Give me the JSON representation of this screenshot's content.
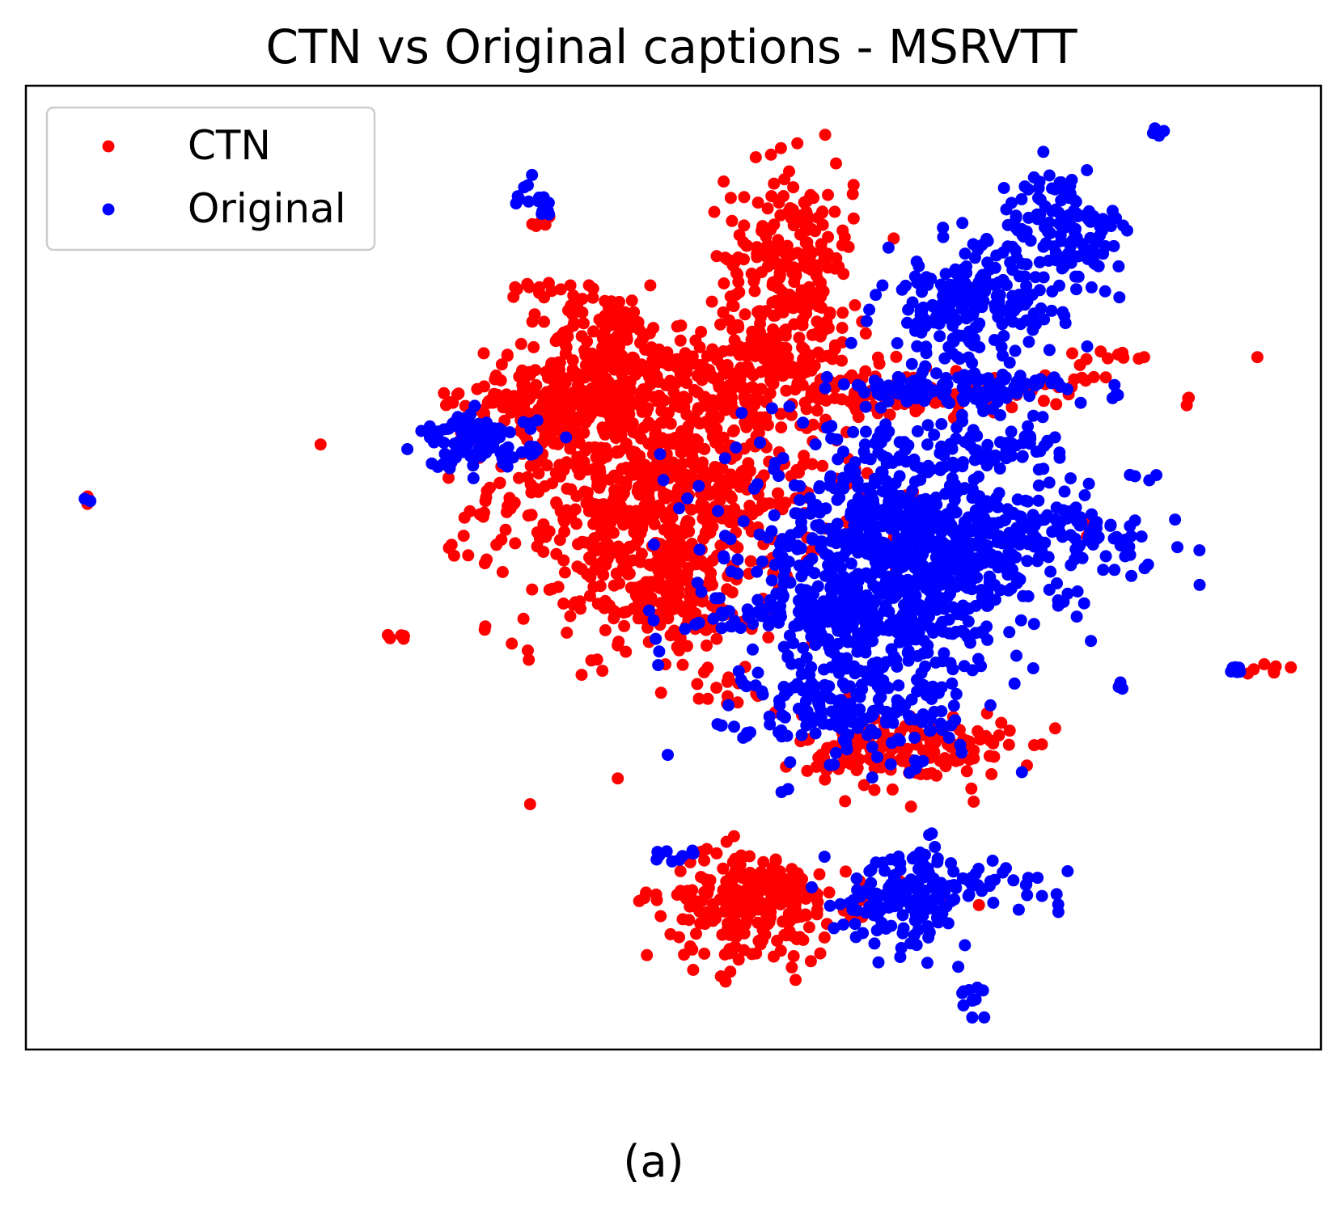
{
  "figure": {
    "caption": "(a)"
  },
  "chart_data": {
    "type": "scatter",
    "title": "CTN vs Original captions - MSRVTT",
    "xlabel": "",
    "ylabel": "",
    "xticks": false,
    "yticks": false,
    "grid": false,
    "legend_position": "top-left",
    "xlim": [
      0,
      100
    ],
    "ylim": [
      0,
      100
    ],
    "series": [
      {
        "name": "CTN",
        "color": "#ff0000",
        "clusters": [
          {
            "cx": 49,
            "cy": 59,
            "sx": 6.5,
            "sy": 8,
            "n": 900
          },
          {
            "cx": 45,
            "cy": 71,
            "sx": 2.5,
            "sy": 4,
            "n": 220
          },
          {
            "cx": 59,
            "cy": 82,
            "sx": 2.5,
            "sy": 5,
            "n": 220
          },
          {
            "cx": 40,
            "cy": 67,
            "sx": 3,
            "sy": 1.6,
            "n": 140
          },
          {
            "cx": 58,
            "cy": 71,
            "sx": 4,
            "sy": 2.5,
            "n": 140
          },
          {
            "cx": 69,
            "cy": 68,
            "sx": 4.5,
            "sy": 1,
            "n": 90
          },
          {
            "cx": 49,
            "cy": 47,
            "sx": 2.5,
            "sy": 3,
            "n": 120
          },
          {
            "cx": 68,
            "cy": 31,
            "sx": 4,
            "sy": 2,
            "n": 170
          },
          {
            "cx": 56,
            "cy": 15,
            "sx": 3,
            "sy": 3,
            "n": 200
          },
          {
            "cx": 58,
            "cy": 16,
            "sx": 6,
            "sy": 1.2,
            "n": 70
          },
          {
            "cx": 39.5,
            "cy": 79,
            "sx": 1.2,
            "sy": 0.6,
            "n": 12
          },
          {
            "cx": 40,
            "cy": 86,
            "sx": 0.5,
            "sy": 0.5,
            "n": 5
          },
          {
            "cx": 28.8,
            "cy": 42.8,
            "sx": 0.5,
            "sy": 0.25,
            "n": 5
          },
          {
            "cx": 4.5,
            "cy": 56.8,
            "sx": 0.2,
            "sy": 0.2,
            "n": 2
          },
          {
            "cx": 96,
            "cy": 39.5,
            "sx": 0.8,
            "sy": 0.3,
            "n": 7
          },
          {
            "cx": 95,
            "cy": 72.3,
            "sx": 0.2,
            "sy": 0.2,
            "n": 1
          },
          {
            "cx": 84,
            "cy": 72,
            "sx": 1,
            "sy": 0.5,
            "n": 8
          },
          {
            "cx": 89.5,
            "cy": 67.5,
            "sx": 0.3,
            "sy": 0.3,
            "n": 3
          },
          {
            "cx": 80.5,
            "cy": 69.5,
            "sx": 1.5,
            "sy": 1,
            "n": 15
          },
          {
            "cx": 53.5,
            "cy": 37.5,
            "sx": 1.5,
            "sy": 1,
            "n": 12
          },
          {
            "cx": 82,
            "cy": 53.5,
            "sx": 0.5,
            "sy": 0.5,
            "n": 4
          }
        ]
      },
      {
        "name": "Original",
        "color": "#0000ff",
        "clusters": [
          {
            "cx": 67,
            "cy": 51,
            "sx": 6,
            "sy": 6.5,
            "n": 800
          },
          {
            "cx": 75,
            "cy": 53,
            "sx": 6,
            "sy": 2.3,
            "n": 220
          },
          {
            "cx": 62,
            "cy": 45,
            "sx": 5.5,
            "sy": 1.5,
            "n": 130
          },
          {
            "cx": 64,
            "cy": 35,
            "sx": 4,
            "sy": 3,
            "n": 170
          },
          {
            "cx": 35,
            "cy": 63,
            "sx": 2.2,
            "sy": 1.4,
            "n": 110
          },
          {
            "cx": 73,
            "cy": 77,
            "sx": 3.5,
            "sy": 3,
            "n": 200
          },
          {
            "cx": 80,
            "cy": 85,
            "sx": 2.5,
            "sy": 3,
            "n": 130
          },
          {
            "cx": 72,
            "cy": 68.5,
            "sx": 5,
            "sy": 0.9,
            "n": 110
          },
          {
            "cx": 76,
            "cy": 63,
            "sx": 2,
            "sy": 1.5,
            "n": 40
          },
          {
            "cx": 68,
            "cy": 16,
            "sx": 2.5,
            "sy": 2.5,
            "n": 150
          },
          {
            "cx": 74,
            "cy": 17,
            "sx": 3,
            "sy": 1,
            "n": 40
          },
          {
            "cx": 39,
            "cy": 89,
            "sx": 0.8,
            "sy": 1.1,
            "n": 12
          },
          {
            "cx": 40.2,
            "cy": 87,
            "sx": 0.4,
            "sy": 0.3,
            "n": 5
          },
          {
            "cx": 87.5,
            "cy": 95,
            "sx": 0.3,
            "sy": 0.3,
            "n": 5
          },
          {
            "cx": 73,
            "cy": 5.5,
            "sx": 0.5,
            "sy": 0.8,
            "n": 10
          },
          {
            "cx": 50,
            "cy": 20,
            "sx": 1.3,
            "sy": 0.3,
            "n": 10
          },
          {
            "cx": 93.5,
            "cy": 39.5,
            "sx": 0.4,
            "sy": 0.3,
            "n": 7
          },
          {
            "cx": 84.5,
            "cy": 37.5,
            "sx": 0.3,
            "sy": 0.4,
            "n": 4
          },
          {
            "cx": 53.5,
            "cy": 34,
            "sx": 0.3,
            "sy": 0.3,
            "n": 3
          },
          {
            "cx": 4.8,
            "cy": 57,
            "sx": 0.2,
            "sy": 0.2,
            "n": 2
          },
          {
            "cx": 84,
            "cy": 68,
            "sx": 0.3,
            "sy": 0.3,
            "n": 3
          },
          {
            "cx": 86.3,
            "cy": 59.5,
            "sx": 0.4,
            "sy": 0.4,
            "n": 4
          }
        ]
      }
    ]
  }
}
